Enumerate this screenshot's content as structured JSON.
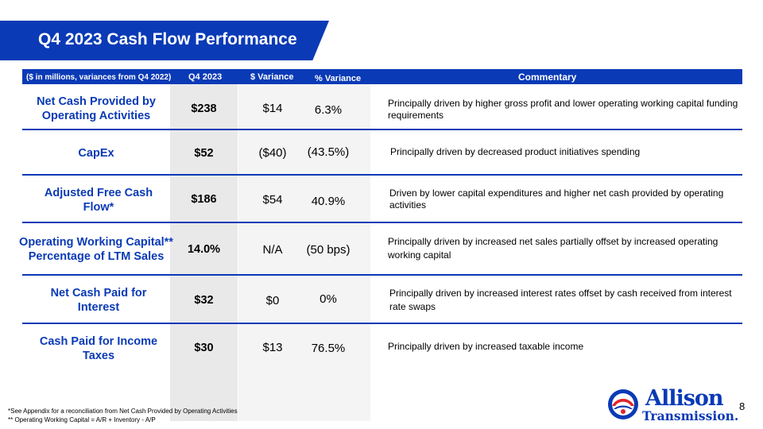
{
  "title": "Q4 2023 Cash Flow Performance",
  "header": {
    "units": "($ in millions, variances from Q4 2022)",
    "q4": "Q4 2023",
    "dollar_variance": "$ Variance",
    "pct_variance": "% Variance",
    "commentary": "Commentary"
  },
  "rows": [
    {
      "metric": "Net Cash Provided by Operating Activities",
      "q4": "$238",
      "dollar_variance": "$14",
      "pct_variance": "6.3%",
      "commentary": "Principally driven by higher gross profit and lower operating working capital funding requirements"
    },
    {
      "metric": "CapEx",
      "q4": "$52",
      "dollar_variance": "($40)",
      "pct_variance": "(43.5%)",
      "commentary": "Principally driven by decreased product initiatives spending"
    },
    {
      "metric": "Adjusted Free Cash Flow*",
      "q4": "$186",
      "dollar_variance": "$54",
      "pct_variance": "40.9%",
      "commentary": "Driven by lower capital expenditures and higher net cash provided by operating activities"
    },
    {
      "metric": "Operating Working Capital** Percentage of LTM Sales",
      "q4": "14.0%",
      "dollar_variance": "N/A",
      "pct_variance": "(50 bps)",
      "commentary": "Principally driven by increased net sales partially offset by increased operating working capital"
    },
    {
      "metric": "Net Cash Paid for Interest",
      "q4": "$32",
      "dollar_variance": "$0",
      "pct_variance": "0%",
      "commentary": "Principally driven by increased interest rates offset by cash received from interest rate swaps"
    },
    {
      "metric": "Cash Paid for Income Taxes",
      "q4": "$30",
      "dollar_variance": "$13",
      "pct_variance": "76.5%",
      "commentary": "Principally driven by increased taxable income"
    }
  ],
  "footnotes": [
    "*See Appendix for a reconciliation from Net Cash Provided by Operating Activities",
    "** Operating Working Capital = A/R + Inventory - A/P"
  ],
  "logo": {
    "line1": "Allison",
    "line2": "Transmission.",
    "icon": "allison-logo-icon",
    "colors": {
      "blue": "#0a3ab6",
      "red": "#e0242c"
    }
  },
  "page_number": "8",
  "colors": {
    "brand_blue": "#0a3ab6",
    "q4_column": "#e9e9e9",
    "variance_columns": "#f4f4f4"
  }
}
